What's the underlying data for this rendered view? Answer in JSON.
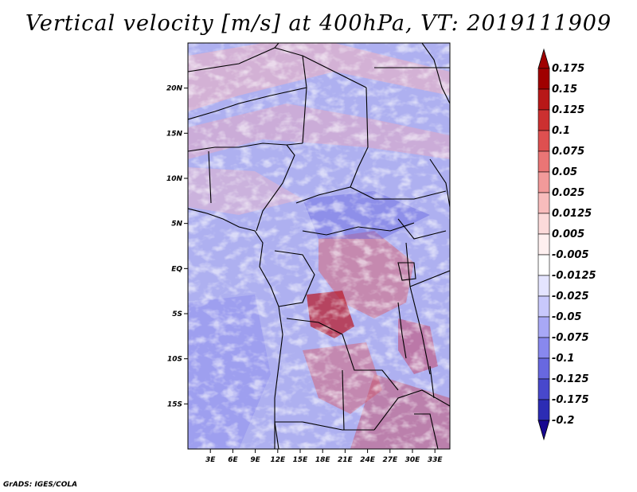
{
  "title": "Vertical velocity [m/s] at 400hPa, VT: 2019111909",
  "credit": "GrADS: IGES/COLA",
  "map": {
    "lon_range": [
      0,
      35
    ],
    "lat_range": [
      -20,
      25
    ],
    "lon_ticks": [
      {
        "value": 3,
        "label": "3E"
      },
      {
        "value": 6,
        "label": "6E"
      },
      {
        "value": 9,
        "label": "9E"
      },
      {
        "value": 12,
        "label": "12E"
      },
      {
        "value": 15,
        "label": "15E"
      },
      {
        "value": 18,
        "label": "18E"
      },
      {
        "value": 21,
        "label": "21E"
      },
      {
        "value": 24,
        "label": "24E"
      },
      {
        "value": 27,
        "label": "27E"
      },
      {
        "value": 30,
        "label": "30E"
      },
      {
        "value": 33,
        "label": "33E"
      }
    ],
    "lat_ticks": [
      {
        "value": 20,
        "label": "20N"
      },
      {
        "value": 15,
        "label": "15N"
      },
      {
        "value": 10,
        "label": "10N"
      },
      {
        "value": 5,
        "label": "5N"
      },
      {
        "value": 0,
        "label": "EQ"
      },
      {
        "value": -5,
        "label": "5S"
      },
      {
        "value": -10,
        "label": "10S"
      },
      {
        "value": -15,
        "label": "15S"
      }
    ]
  },
  "colorbar": {
    "levels": [
      {
        "label": "0.175",
        "color": "#a00000"
      },
      {
        "label": "0.15",
        "color": "#b81818"
      },
      {
        "label": "0.125",
        "color": "#cc3030"
      },
      {
        "label": "0.1",
        "color": "#de5050"
      },
      {
        "label": "0.075",
        "color": "#ea7575"
      },
      {
        "label": "0.05",
        "color": "#f29a9a"
      },
      {
        "label": "0.025",
        "color": "#f8bcbc"
      },
      {
        "label": "0.0125",
        "color": "#fcdada"
      },
      {
        "label": "0.005",
        "color": "#fff0f0"
      },
      {
        "label": "-0.005",
        "color": "#ffffff"
      },
      {
        "label": "-0.0125",
        "color": "#e4e4ff"
      },
      {
        "label": "-0.025",
        "color": "#c8c8fc"
      },
      {
        "label": "-0.05",
        "color": "#a8a8f6"
      },
      {
        "label": "-0.075",
        "color": "#8888ee"
      },
      {
        "label": "-0.1",
        "color": "#6868e0"
      },
      {
        "label": "-0.125",
        "color": "#4848cc"
      },
      {
        "label": "-0.175",
        "color": "#2c2cb4"
      },
      {
        "label": "-0.2",
        "color": "#181898"
      }
    ],
    "top_arrow_color": "#a00000",
    "bottom_arrow_color": "#180890"
  }
}
